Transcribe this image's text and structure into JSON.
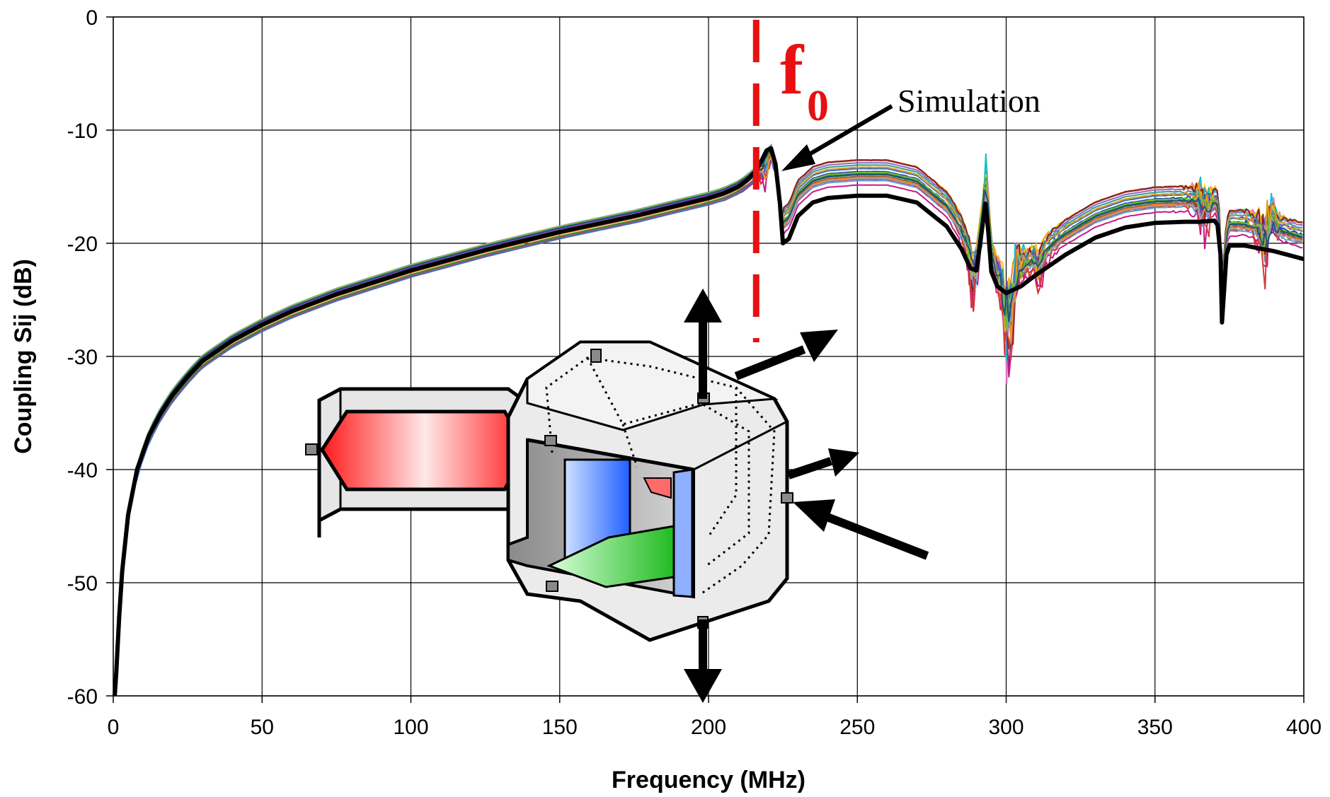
{
  "chart_data": {
    "type": "line",
    "title": "",
    "xlabel": "Frequency (MHz)",
    "ylabel": "Coupling Sij (dB)",
    "xlim": [
      0,
      400
    ],
    "ylim": [
      -60,
      0
    ],
    "x_ticks": [
      0,
      50,
      100,
      150,
      200,
      250,
      300,
      350,
      400
    ],
    "y_ticks": [
      0,
      -10,
      -20,
      -30,
      -40,
      -50,
      -60
    ],
    "grid": true,
    "legend": "none",
    "measured_series_count": 24,
    "measured_colors": [
      "#1f3fb4",
      "#e8891a",
      "#2ca02c",
      "#d62728",
      "#9467bd",
      "#8c564b",
      "#e377c2",
      "#7f7f7f",
      "#bcbd22",
      "#17becf",
      "#ff7f0e",
      "#0a7a40",
      "#c61a86",
      "#5aa0e6",
      "#f2c00a",
      "#8a1a1a",
      "#30a090",
      "#7a3db8",
      "#d04040",
      "#4070c0",
      "#a0a0a0",
      "#e0a020",
      "#6fbf2f",
      "#205080"
    ],
    "series": [
      {
        "name": "Simulation",
        "color": "#000000",
        "x": [
          0.5,
          1,
          2,
          3,
          5,
          8,
          12,
          16,
          20,
          25,
          30,
          40,
          50,
          60,
          75,
          100,
          125,
          150,
          175,
          200,
          205,
          210,
          213,
          216,
          218,
          219.5,
          221,
          222.5,
          224,
          225,
          227,
          230,
          235,
          240,
          250,
          260,
          270,
          280,
          285,
          288,
          290,
          291,
          292,
          293,
          294,
          295,
          297,
          300,
          305,
          310,
          320,
          330,
          340,
          350,
          360,
          365,
          370,
          371,
          372,
          372.5,
          373,
          374,
          375,
          380,
          390,
          400
        ],
        "y": [
          -60,
          -58,
          -53,
          -49,
          -44,
          -40,
          -37,
          -35,
          -33.4,
          -31.8,
          -30.4,
          -28.6,
          -27.2,
          -26,
          -24.5,
          -22.4,
          -20.6,
          -19,
          -17.6,
          -16,
          -15.6,
          -15,
          -14.4,
          -13.6,
          -12.6,
          -11.8,
          -11.6,
          -13,
          -16.5,
          -20,
          -19.6,
          -17.6,
          -16.4,
          -16,
          -15.8,
          -15.8,
          -16.4,
          -18.5,
          -20.5,
          -22.2,
          -22.4,
          -20.5,
          -18.5,
          -16.5,
          -19,
          -22.5,
          -23.8,
          -24.4,
          -23.8,
          -22.8,
          -21,
          -19.5,
          -18.6,
          -18.2,
          -18.1,
          -18.1,
          -18,
          -18.4,
          -21,
          -27,
          -25,
          -21,
          -20.2,
          -20.2,
          -20.7,
          -21.4
        ]
      }
    ],
    "annotations": {
      "resonance_line_x": 216,
      "resonance_color": "#e81010",
      "resonance_symbol": "f",
      "resonance_subscript": "0",
      "simulation_label": "Simulation"
    }
  },
  "inset": {
    "description_icon": "cavity-diagram",
    "colors": {
      "body": "#e4e4e4",
      "coupler": "#ff3030",
      "side_plate": "#3070ff",
      "floor_plate": "#30c030",
      "arrow": "#000000"
    }
  }
}
